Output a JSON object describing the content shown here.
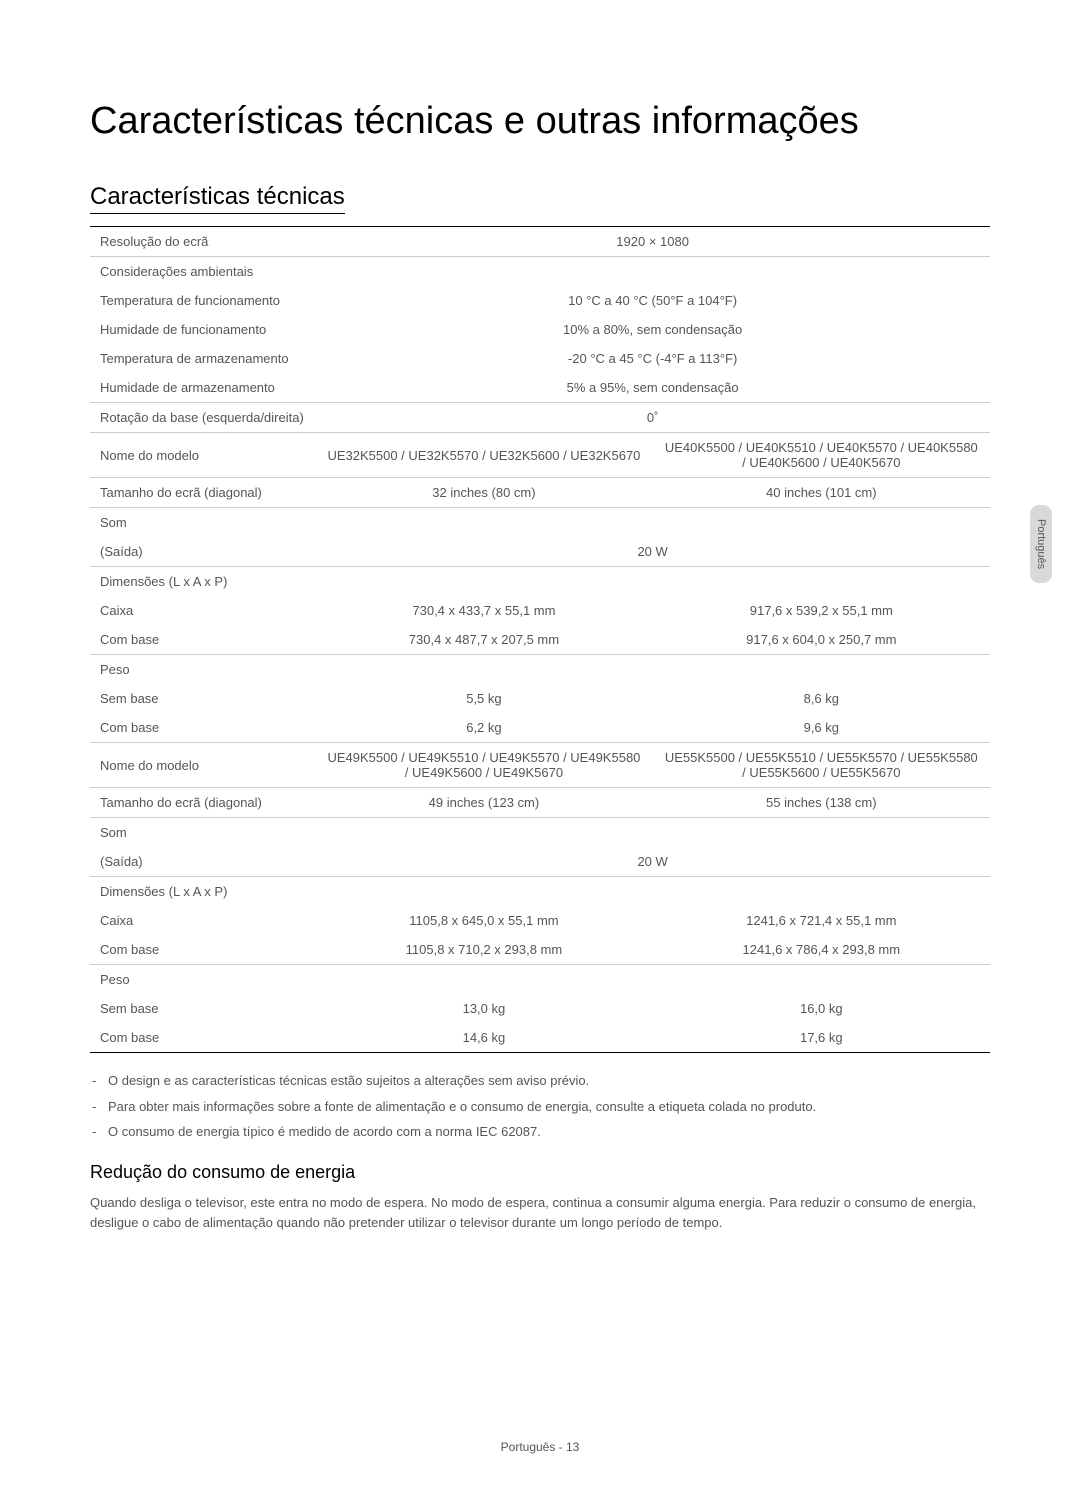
{
  "page": {
    "main_title": "Características técnicas e outras informações",
    "sub_title": "Características técnicas",
    "side_tab": "Português",
    "footer": "Português - 13"
  },
  "table": {
    "rows": [
      {
        "label": "Resolução do ecrã",
        "val_span": "1920 × 1080",
        "section_top": true
      },
      {
        "label": "Considerações ambientais",
        "val_span": "",
        "section_top": true,
        "no_border": true
      },
      {
        "label": "Temperatura de funcionamento",
        "val_span": "10 °C a 40 °C (50°F a 104°F)",
        "no_border": true
      },
      {
        "label": "Humidade de funcionamento",
        "val_span": "10% a 80%, sem condensação",
        "no_border": true
      },
      {
        "label": "Temperatura de armazenamento",
        "val_span": "-20 °C a 45 °C (-4°F a 113°F)",
        "no_border": true
      },
      {
        "label": "Humidade de armazenamento",
        "val_span": "5% a 95%, sem condensação"
      },
      {
        "label": "Rotação da base (esquerda/direita)",
        "val_span": "0˚",
        "section_top": true
      },
      {
        "label": "Nome do modelo",
        "val1": "UE32K5500 / UE32K5570 / UE32K5600 / UE32K5670",
        "val2": "UE40K5500 / UE40K5510 / UE40K5570 / UE40K5580 / UE40K5600 / UE40K5670",
        "section_top": true
      },
      {
        "label": "Tamanho do ecrã (diagonal)",
        "val1": "32 inches (80 cm)",
        "val2": "40 inches (101 cm)",
        "section_top": true
      },
      {
        "label": "Som",
        "val_span": "",
        "section_top": true,
        "no_border": true
      },
      {
        "label": "(Saída)",
        "val_span": "20 W"
      },
      {
        "label": "Dimensões (L x A x P)",
        "val1": "",
        "val2": "",
        "section_top": true,
        "no_border": true
      },
      {
        "label": "Caixa",
        "val1": "730,4 x 433,7 x 55,1 mm",
        "val2": "917,6 x 539,2 x 55,1 mm",
        "no_border": true
      },
      {
        "label": "Com base",
        "val1": "730,4 x 487,7 x 207,5 mm",
        "val2": "917,6 x 604,0 x 250,7 mm"
      },
      {
        "label": "Peso",
        "val1": "",
        "val2": "",
        "section_top": true,
        "no_border": true
      },
      {
        "label": "Sem base",
        "val1": "5,5 kg",
        "val2": "8,6 kg",
        "no_border": true
      },
      {
        "label": "Com base",
        "val1": "6,2 kg",
        "val2": "9,6 kg"
      },
      {
        "label": "Nome do modelo",
        "val1": "UE49K5500 / UE49K5510 / UE49K5570 / UE49K5580 / UE49K5600 / UE49K5670",
        "val2": "UE55K5500 / UE55K5510 / UE55K5570 / UE55K5580 / UE55K5600 / UE55K5670",
        "section_top": true
      },
      {
        "label": "Tamanho do ecrã (diagonal)",
        "val1": "49 inches (123 cm)",
        "val2": "55 inches (138 cm)",
        "section_top": true
      },
      {
        "label": "Som",
        "val_span": "",
        "section_top": true,
        "no_border": true
      },
      {
        "label": "(Saída)",
        "val_span": "20 W"
      },
      {
        "label": "Dimensões (L x A x P)",
        "val1": "",
        "val2": "",
        "section_top": true,
        "no_border": true
      },
      {
        "label": "Caixa",
        "val1": "1105,8 x 645,0 x 55,1 mm",
        "val2": "1241,6 x 721,4 x 55,1 mm",
        "no_border": true
      },
      {
        "label": "Com base",
        "val1": "1105,8 x 710,2 x 293,8 mm",
        "val2": "1241,6 x 786,4 x 293,8 mm"
      },
      {
        "label": "Peso",
        "val1": "",
        "val2": "",
        "section_top": true,
        "no_border": true
      },
      {
        "label": "Sem base",
        "val1": "13,0 kg",
        "val2": "16,0 kg",
        "no_border": true
      },
      {
        "label": "Com base",
        "val1": "14,6 kg",
        "val2": "17,6 kg",
        "last_row": true
      }
    ]
  },
  "notes": {
    "items": [
      "O design e as características técnicas estão sujeitos a alterações sem aviso prévio.",
      "Para obter mais informações sobre a fonte de alimentação e o consumo de energia, consulte a etiqueta colada no produto.",
      "O consumo de energia típico é medido de acordo com a norma IEC 62087."
    ]
  },
  "energy": {
    "heading": "Redução do consumo de energia",
    "body": "Quando desliga o televisor, este entra no modo de espera. No modo de espera, continua a consumir alguma energia. Para reduzir o consumo de energia, desligue o cabo de alimentação quando não pretender utilizar o televisor durante um longo período de tempo."
  },
  "style": {
    "text_color": "#555555",
    "heading_color": "#000000",
    "border_light": "#cccccc",
    "border_dark": "#000000",
    "tab_bg": "#d9d9d9",
    "body_font_size": 13,
    "main_title_size": 38,
    "sub_title_size": 24
  }
}
